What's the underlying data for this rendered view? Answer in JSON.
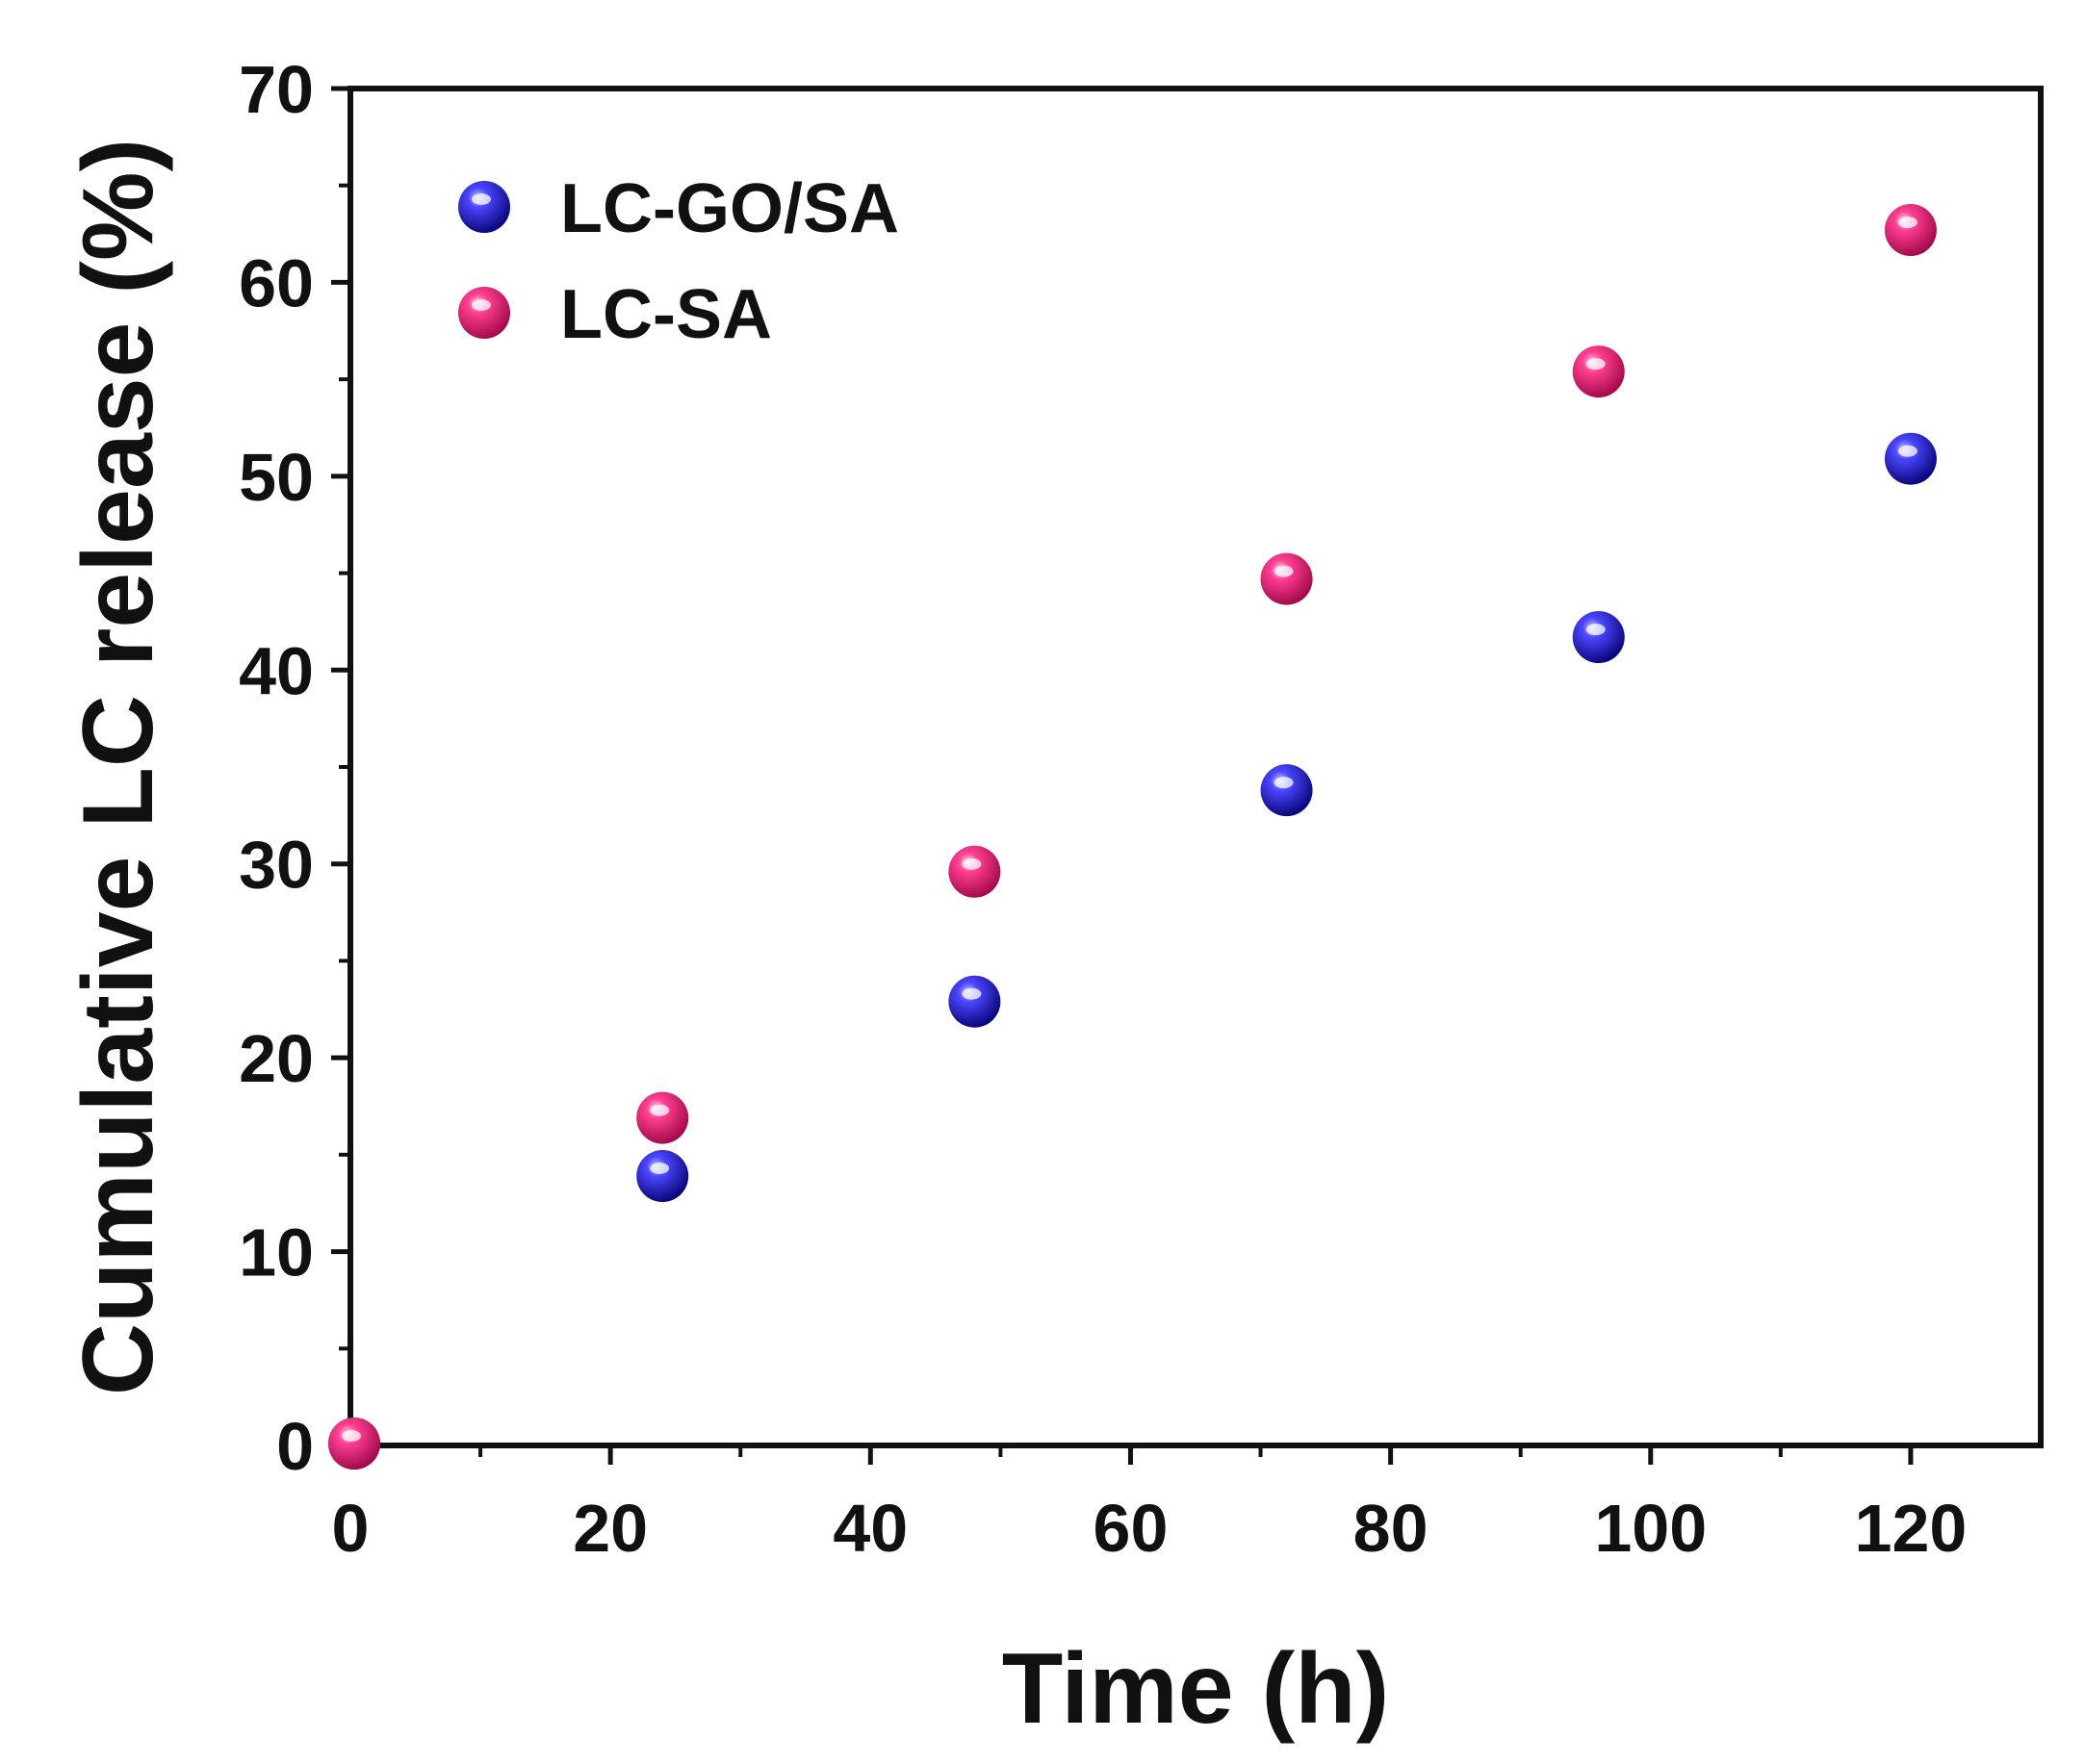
{
  "chart_data": {
    "type": "scatter",
    "title": "",
    "xlabel": "Time (h)",
    "ylabel": "Cumulative LC release (%)",
    "xlim": [
      0,
      130
    ],
    "ylim": [
      0,
      70
    ],
    "xticks": [
      0,
      20,
      40,
      60,
      80,
      100,
      120
    ],
    "xtick_labels": [
      "0",
      "20",
      "40",
      "60",
      "80",
      "100",
      "120"
    ],
    "yticks": [
      0,
      10,
      20,
      30,
      40,
      50,
      60,
      70
    ],
    "ytick_labels": [
      "0",
      "10",
      "20",
      "30",
      "40",
      "50",
      "60",
      "70"
    ],
    "grid": false,
    "legend_position": "top-left",
    "series": [
      {
        "name": "LC-GO/SA",
        "color": "#1a14d6",
        "x": [
          0,
          24,
          48,
          72,
          96,
          120
        ],
        "y": [
          0,
          13.9,
          22.9,
          33.8,
          41.7,
          50.9
        ]
      },
      {
        "name": "LC-SA",
        "color": "#e8146f",
        "x": [
          0,
          24,
          48,
          72,
          96,
          120
        ],
        "y": [
          0,
          16.9,
          29.6,
          44.7,
          55.4,
          62.7
        ]
      }
    ]
  }
}
